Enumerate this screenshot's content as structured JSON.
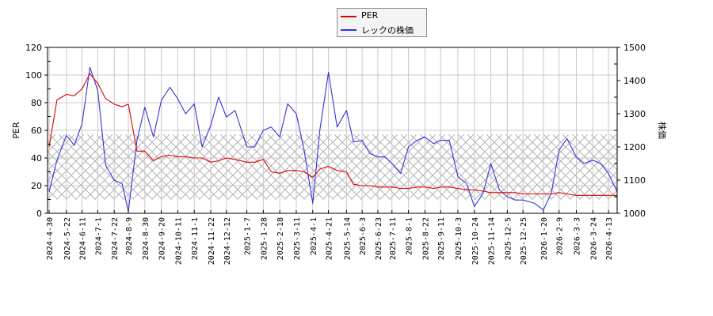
{
  "legend": {
    "items": [
      {
        "label": "PER",
        "color": "#dd0000"
      },
      {
        "label": "レックの株価",
        "color": "#3333dd"
      }
    ]
  },
  "axes": {
    "left_title": "PER",
    "right_title": "株価",
    "left_ticks": [
      "0",
      "20",
      "40",
      "60",
      "80",
      "100",
      "120"
    ],
    "right_ticks": [
      "1000",
      "1100",
      "1200",
      "1300",
      "1400",
      "1500"
    ]
  },
  "chart_data": {
    "type": "line",
    "title": "",
    "xlabel": "",
    "ylabel": "PER",
    "y2label": "株価",
    "ylim": [
      0,
      120
    ],
    "y2lim": [
      1000,
      1500
    ],
    "grid": true,
    "legend_position": "top-center",
    "shaded_band": {
      "axis": "y",
      "range": [
        10,
        57
      ],
      "pattern": "crosshatch",
      "color": "#b0b0b0"
    },
    "x_tick_labels": [
      "2024-4-30",
      "2024-5-22",
      "2024-6-11",
      "2024-7-1",
      "2024-7-22",
      "2024-8-9",
      "2024-8-30",
      "2024-9-20",
      "2024-10-11",
      "2024-11-1",
      "2024-11-22",
      "2024-12-12",
      "2025-1-7",
      "2025-1-28",
      "2025-2-18",
      "2025-3-11",
      "2025-4-1",
      "2025-4-21",
      "2025-5-14",
      "2025-6-3",
      "2025-6-23",
      "2025-7-11",
      "2025-8-1",
      "2025-8-22",
      "2025-9-11",
      "2025-10-3",
      "2025-10-24",
      "2025-11-14",
      "2025-12-5",
      "2025-12-25",
      "2026-1-20",
      "2026-2-9",
      "2026-3-3",
      "2026-3-24",
      "2026-4-13"
    ],
    "x": [
      "2024-4-30",
      "2024-5-10",
      "2024-5-22",
      "2024-6-1",
      "2024-6-11",
      "2024-6-21",
      "2024-7-1",
      "2024-7-11",
      "2024-7-22",
      "2024-8-1",
      "2024-8-9",
      "2024-8-20",
      "2024-8-30",
      "2024-9-10",
      "2024-9-20",
      "2024-10-1",
      "2024-10-11",
      "2024-10-21",
      "2024-11-1",
      "2024-11-11",
      "2024-11-22",
      "2024-12-2",
      "2024-12-12",
      "2024-12-23",
      "2025-1-7",
      "2025-1-17",
      "2025-1-28",
      "2025-2-7",
      "2025-2-18",
      "2025-2-28",
      "2025-3-11",
      "2025-3-21",
      "2025-4-1",
      "2025-4-10",
      "2025-4-21",
      "2025-5-2",
      "2025-5-14",
      "2025-5-23",
      "2025-6-3",
      "2025-6-13",
      "2025-6-23",
      "2025-7-2",
      "2025-7-11",
      "2025-7-22",
      "2025-8-1",
      "2025-8-12",
      "2025-8-22",
      "2025-9-2",
      "2025-9-11",
      "2025-9-22",
      "2025-10-3",
      "2025-10-14",
      "2025-10-24",
      "2025-11-4",
      "2025-11-14",
      "2025-11-25",
      "2025-12-5",
      "2025-12-15",
      "2025-12-25",
      "2026-1-9",
      "2026-1-20",
      "2026-1-30",
      "2026-2-9",
      "2026-2-19",
      "2026-3-3",
      "2026-3-13",
      "2026-3-24",
      "2026-4-3",
      "2026-4-13",
      "2026-4-24"
    ],
    "series": [
      {
        "name": "PER",
        "axis": "left",
        "color": "#dd0000",
        "values": [
          48,
          82,
          86,
          85,
          90,
          101,
          94,
          83,
          79,
          77,
          79,
          45,
          45,
          38,
          41,
          42,
          41,
          41,
          40,
          40,
          37,
          38,
          40,
          39,
          37,
          37,
          39,
          30,
          29,
          31,
          31,
          30,
          26,
          32,
          34,
          31,
          30,
          21,
          20,
          20,
          19,
          19,
          19,
          18,
          18,
          19,
          19,
          18,
          19,
          19,
          18,
          17,
          17,
          16,
          15,
          15,
          15,
          15,
          14,
          14,
          14,
          14,
          15,
          14,
          13,
          13,
          13,
          13,
          13,
          13
        ]
      },
      {
        "name": "レックの株価",
        "axis": "right",
        "color": "#3333dd",
        "values": [
          1065,
          1160,
          1235,
          1205,
          1270,
          1440,
          1370,
          1145,
          1100,
          1090,
          1005,
          1220,
          1320,
          1230,
          1340,
          1380,
          1345,
          1300,
          1330,
          1200,
          1265,
          1350,
          1290,
          1310,
          1200,
          1200,
          1250,
          1260,
          1230,
          1330,
          1300,
          1190,
          1030,
          1250,
          1425,
          1260,
          1310,
          1215,
          1220,
          1180,
          1170,
          1170,
          1150,
          1120,
          1200,
          1220,
          1230,
          1210,
          1220,
          1220,
          1110,
          1090,
          1020,
          1060,
          1150,
          1070,
          1050,
          1040,
          1040,
          1030,
          1010,
          1060,
          1190,
          1225,
          1170,
          1150,
          1160,
          1150,
          1120,
          1065
        ]
      }
    ]
  }
}
